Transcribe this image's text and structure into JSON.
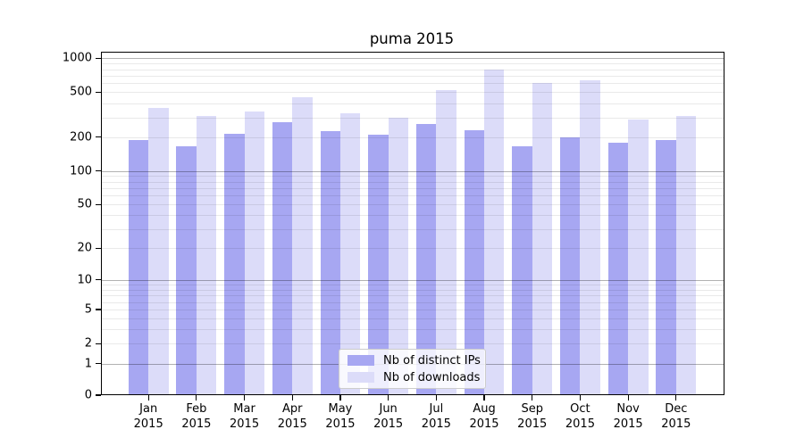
{
  "chart_data": {
    "type": "bar",
    "title": "puma 2015",
    "categories": [
      "Jan",
      "Feb",
      "Mar",
      "Apr",
      "May",
      "Jun",
      "Jul",
      "Aug",
      "Sep",
      "Oct",
      "Nov",
      "Dec"
    ],
    "year_label": "2015",
    "series": [
      {
        "name": "Nb of distinct IPs",
        "color": "#a7a7f2",
        "values": [
          190,
          165,
          215,
          270,
          225,
          210,
          260,
          230,
          165,
          200,
          180,
          190
        ]
      },
      {
        "name": "Nb of downloads",
        "color": "#dcdcf9",
        "values": [
          365,
          310,
          335,
          450,
          325,
          300,
          525,
          800,
          600,
          640,
          285,
          310
        ]
      }
    ],
    "y_axis": {
      "scale": "log(1+x)",
      "ticks": [
        0,
        1,
        2,
        5,
        10,
        20,
        50,
        100,
        200,
        500,
        1000
      ],
      "tick_labels": [
        "0",
        "1",
        "2",
        "5",
        "10",
        "20",
        "50",
        "100",
        "200",
        "500",
        "1000"
      ],
      "range": [
        0,
        1000
      ]
    },
    "grid": {
      "horizontal": true,
      "minor": true,
      "drawn_above_bars": true
    },
    "legend": {
      "position": "lower center",
      "items": [
        "Nb of distinct IPs",
        "Nb of downloads"
      ]
    }
  }
}
